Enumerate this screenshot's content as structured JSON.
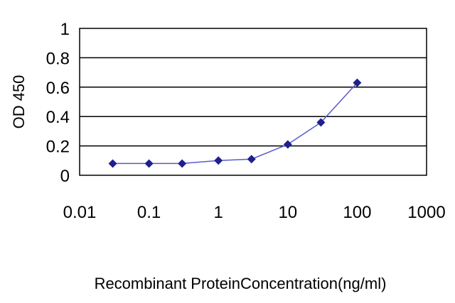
{
  "chart_data": {
    "type": "line",
    "title": "",
    "xlabel": "Recombinant ProteinConcentration(ng/ml)",
    "ylabel": "OD 450",
    "x_scale": "log",
    "xlim": [
      0.01,
      1000
    ],
    "ylim": [
      0,
      1
    ],
    "x_ticks": [
      "0.01",
      "0.1",
      "1",
      "10",
      "100",
      "1000"
    ],
    "y_ticks": [
      "0",
      "0.2",
      "0.4",
      "0.6",
      "0.8",
      "1"
    ],
    "grid": "horizontal",
    "legend": "none",
    "series": [
      {
        "color": "#1f1f8f",
        "marker": "diamond",
        "points": [
          {
            "x": 0.03,
            "y": 0.08
          },
          {
            "x": 0.1,
            "y": 0.08
          },
          {
            "x": 0.3,
            "y": 0.08
          },
          {
            "x": 1,
            "y": 0.1
          },
          {
            "x": 3,
            "y": 0.11
          },
          {
            "x": 10,
            "y": 0.21
          },
          {
            "x": 30,
            "y": 0.36
          },
          {
            "x": 100,
            "y": 0.63
          }
        ]
      }
    ]
  }
}
